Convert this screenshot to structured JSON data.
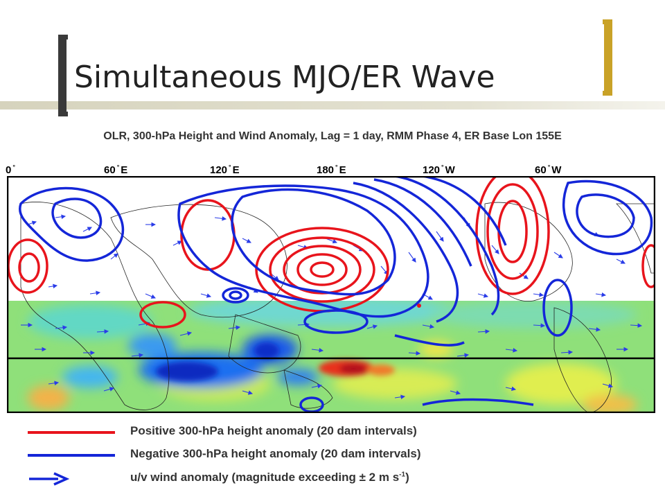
{
  "slide": {
    "title": "Simultaneous MJO/ER Wave",
    "accent_color": "#c9a227"
  },
  "figure": {
    "title": "OLR, 300-hPa Height and Wind Anomaly, Lag = 1 day, RMM Phase 4, ER Base Lon 155E",
    "lon_labels": [
      {
        "value": "0",
        "deg": "°",
        "dir": ""
      },
      {
        "value": "60",
        "deg": "°",
        "dir": "E"
      },
      {
        "value": "120",
        "deg": "°",
        "dir": "E"
      },
      {
        "value": "180",
        "deg": "°",
        "dir": "E"
      },
      {
        "value": "120",
        "deg": "°",
        "dir": "W"
      },
      {
        "value": "60",
        "deg": "°",
        "dir": "W"
      }
    ]
  },
  "legend": {
    "positive": {
      "label": "Positive 300-hPa height anomaly (20 dam intervals)",
      "color": "#e8141c"
    },
    "negative": {
      "label": "Negative 300-hPa height anomaly (20 dam intervals)",
      "color": "#1426d8"
    },
    "wind": {
      "label_main": "u/v wind anomaly (magnitude exceeding ± 2 m s",
      "label_exp": "-1",
      "label_end": ")",
      "color": "#1426d8"
    }
  },
  "icons": {
    "wind_arrow": "arrow-right-icon"
  }
}
